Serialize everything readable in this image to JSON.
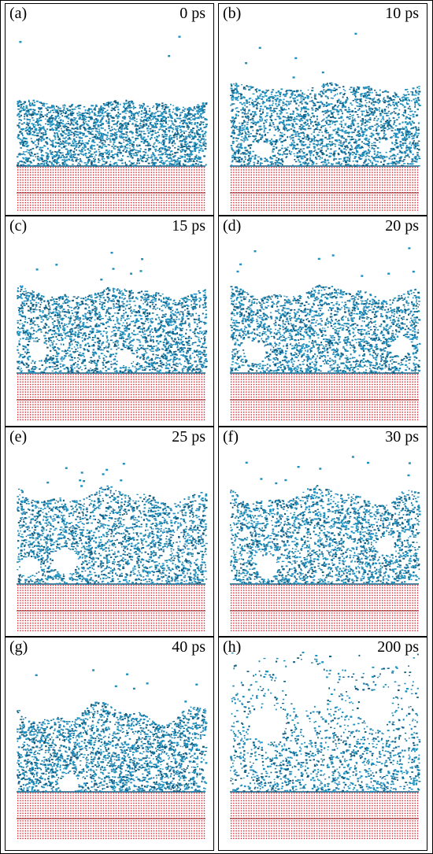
{
  "colors": {
    "water": "#1f8fbd",
    "water_dark": "#135d80",
    "substrate": "#e0202a",
    "border": "#000000"
  },
  "panels": [
    {
      "label": "(a)",
      "time": "0 ps",
      "time_ps": 0
    },
    {
      "label": "(b)",
      "time": "10 ps",
      "time_ps": 10
    },
    {
      "label": "(c)",
      "time": "15 ps",
      "time_ps": 15
    },
    {
      "label": "(d)",
      "time": "20 ps",
      "time_ps": 20
    },
    {
      "label": "(e)",
      "time": "25 ps",
      "time_ps": 25
    },
    {
      "label": "(f)",
      "time": "30 ps",
      "time_ps": 30
    },
    {
      "label": "(g)",
      "time": "40 ps",
      "time_ps": 40
    },
    {
      "label": "(h)",
      "time": "200 ps",
      "time_ps": 200
    }
  ]
}
